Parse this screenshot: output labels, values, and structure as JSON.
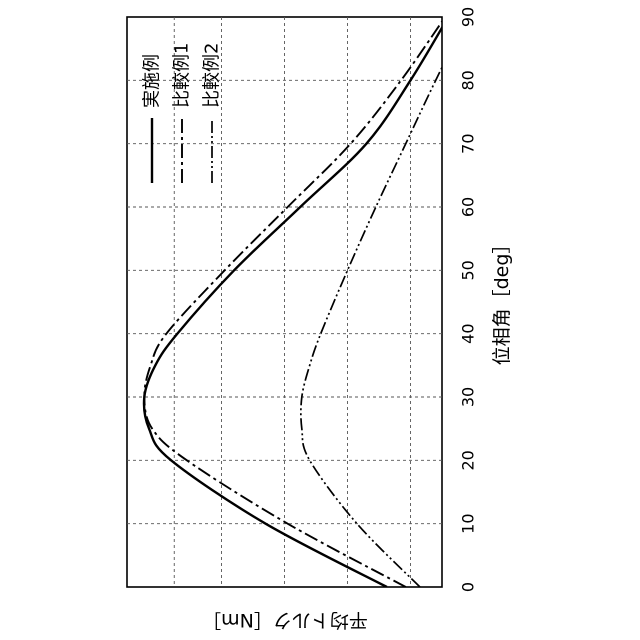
{
  "chart_data": {
    "type": "line",
    "orientation": "rotated-90-clockwise",
    "xlabel": "位相角［deg］",
    "ylabel": "平均トルク［Nm］",
    "xlim": [
      0,
      90
    ],
    "x_ticks": [
      "0",
      "10",
      "20",
      "30",
      "40",
      "50",
      "60",
      "70",
      "80",
      "90"
    ],
    "ylim": [
      0,
      1
    ],
    "y_gridlines": [
      0.1,
      0.3,
      0.5,
      0.7,
      0.85
    ],
    "grid": true,
    "legend_position": "top-right",
    "x": [
      0,
      10,
      20,
      25,
      30,
      35,
      40,
      50,
      60,
      70,
      80,
      90
    ],
    "series": [
      {
        "name": "実施例",
        "line_style": "solid",
        "values": [
          0.175,
          0.56,
          0.86,
          0.93,
          0.945,
          0.91,
          0.84,
          0.66,
          0.45,
          0.24,
          0.1,
          -0.02
        ]
      },
      {
        "name": "比較例1",
        "line_style": "dash-dot",
        "values": [
          0.115,
          0.49,
          0.81,
          0.92,
          0.945,
          0.925,
          0.875,
          0.69,
          0.49,
          0.29,
          0.13,
          -0.01
        ]
      },
      {
        "name": "比較例2",
        "line_style": "dash-dot-dot",
        "values": [
          0.07,
          0.27,
          0.42,
          0.445,
          0.445,
          0.42,
          0.385,
          0.3,
          0.21,
          0.115,
          0.02,
          -0.08
        ]
      }
    ]
  }
}
